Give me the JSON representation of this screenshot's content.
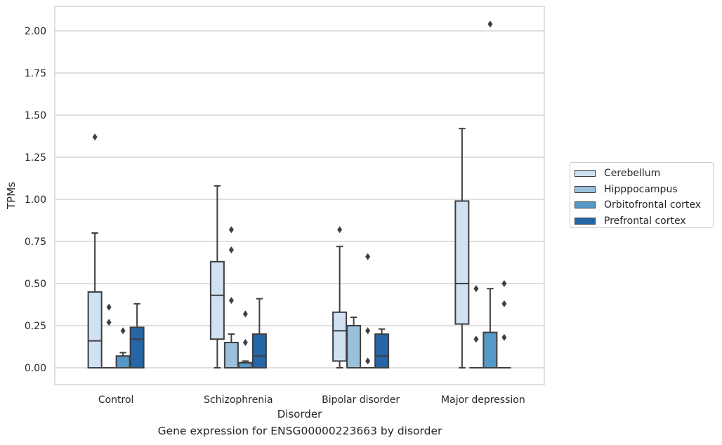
{
  "chart_data": {
    "type": "boxplot",
    "caption": "Gene expression for ENSG00000223663 by disorder",
    "xlabel": "Disorder",
    "ylabel": "TPMs",
    "ylim": [
      -0.1,
      2.15
    ],
    "yticks": [
      "0.00",
      "0.25",
      "0.50",
      "0.75",
      "1.00",
      "1.25",
      "1.50",
      "1.75",
      "2.00"
    ],
    "categories": [
      "Control",
      "Schizophrenia",
      "Bipolar disorder",
      "Major depression"
    ],
    "grid": "horizontal",
    "legend_position": "right",
    "series": [
      {
        "name": "Cerebellum",
        "color": "#d0e1f2",
        "boxes": [
          {
            "whislo": 0.0,
            "q1": 0.0,
            "med": 0.16,
            "q3": 0.45,
            "whishi": 0.8,
            "fliers": [
              1.37
            ]
          },
          {
            "whislo": 0.0,
            "q1": 0.17,
            "med": 0.43,
            "q3": 0.63,
            "whishi": 1.08,
            "fliers": []
          },
          {
            "whislo": 0.0,
            "q1": 0.04,
            "med": 0.22,
            "q3": 0.33,
            "whishi": 0.72,
            "fliers": [
              0.82
            ]
          },
          {
            "whislo": 0.0,
            "q1": 0.26,
            "med": 0.5,
            "q3": 0.99,
            "whishi": 1.42,
            "fliers": []
          }
        ]
      },
      {
        "name": "Hipppocampus",
        "color": "#9ac1dc",
        "boxes": [
          {
            "whislo": 0.0,
            "q1": 0.0,
            "med": 0.0,
            "q3": 0.0,
            "whishi": 0.0,
            "fliers": [
              0.36,
              0.27
            ]
          },
          {
            "whislo": 0.0,
            "q1": 0.0,
            "med": 0.0,
            "q3": 0.15,
            "whishi": 0.2,
            "fliers": [
              0.82,
              0.7,
              0.4
            ]
          },
          {
            "whislo": 0.0,
            "q1": 0.0,
            "med": 0.0,
            "q3": 0.25,
            "whishi": 0.3,
            "fliers": []
          },
          {
            "whislo": 0.0,
            "q1": 0.0,
            "med": 0.0,
            "q3": 0.0,
            "whishi": 0.0,
            "fliers": [
              0.47,
              0.17
            ]
          }
        ]
      },
      {
        "name": "Orbitofrontal cortex",
        "color": "#5599c8",
        "boxes": [
          {
            "whislo": 0.0,
            "q1": 0.0,
            "med": 0.0,
            "q3": 0.07,
            "whishi": 0.09,
            "fliers": [
              0.22
            ]
          },
          {
            "whislo": 0.0,
            "q1": 0.0,
            "med": 0.03,
            "q3": 0.03,
            "whishi": 0.04,
            "fliers": [
              0.32,
              0.15
            ]
          },
          {
            "whislo": 0.0,
            "q1": 0.0,
            "med": 0.0,
            "q3": 0.0,
            "whishi": 0.0,
            "fliers": [
              0.66,
              0.22,
              0.04
            ]
          },
          {
            "whislo": 0.0,
            "q1": 0.0,
            "med": 0.0,
            "q3": 0.21,
            "whishi": 0.47,
            "fliers": [
              2.04
            ]
          }
        ]
      },
      {
        "name": "Prefrontal cortex",
        "color": "#2466a8",
        "boxes": [
          {
            "whislo": 0.0,
            "q1": 0.0,
            "med": 0.17,
            "q3": 0.24,
            "whishi": 0.38,
            "fliers": []
          },
          {
            "whislo": 0.0,
            "q1": 0.0,
            "med": 0.07,
            "q3": 0.2,
            "whishi": 0.41,
            "fliers": []
          },
          {
            "whislo": 0.0,
            "q1": 0.0,
            "med": 0.07,
            "q3": 0.2,
            "whishi": 0.23,
            "fliers": []
          },
          {
            "whislo": 0.0,
            "q1": 0.0,
            "med": 0.0,
            "q3": 0.0,
            "whishi": 0.0,
            "fliers": [
              0.5,
              0.38,
              0.18
            ]
          }
        ]
      }
    ]
  }
}
